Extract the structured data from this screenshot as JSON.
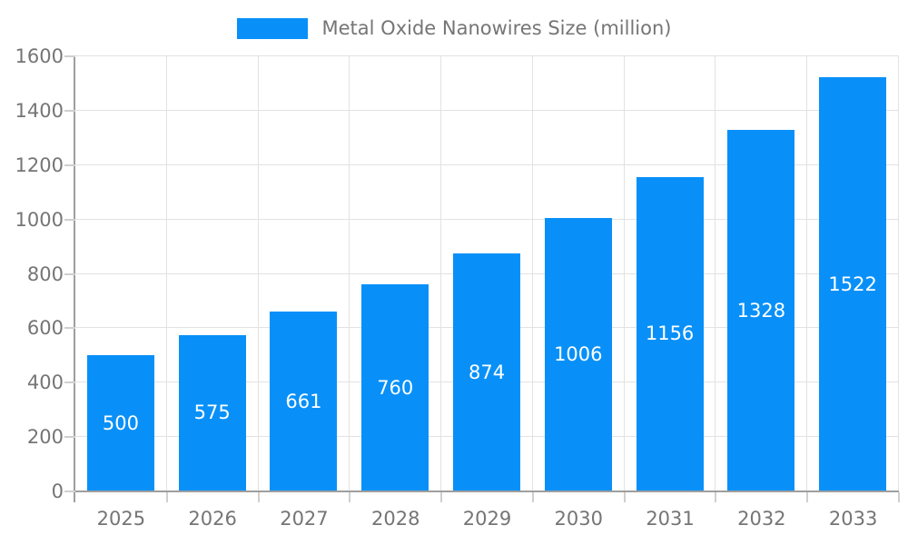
{
  "legend": {
    "label": "Metal Oxide Nanowires Size (million)"
  },
  "colors": {
    "bar": "#0890f8",
    "bar_label": "#ffffff",
    "axis_line": "#9e9e9e",
    "grid_line": "#e2e2e2",
    "tick": "#cfcfcf",
    "axis_text": "#757575",
    "background": "#ffffff"
  },
  "chart_data": {
    "type": "bar",
    "title": "Metal Oxide Nanowires Size (million)",
    "series_name": "Metal Oxide Nanowires Size (million)",
    "categories": [
      "2025",
      "2026",
      "2027",
      "2028",
      "2029",
      "2030",
      "2031",
      "2032",
      "2033"
    ],
    "values": [
      500,
      575,
      661,
      760,
      874,
      1006,
      1156,
      1328,
      1522
    ],
    "xlabel": "",
    "ylabel": "",
    "ylim": [
      0,
      1600
    ],
    "y_ticks": [
      0,
      200,
      400,
      600,
      800,
      1000,
      1200,
      1400,
      1600
    ],
    "grid": true,
    "legend_position": "top-center",
    "value_labels": "inside-center"
  }
}
